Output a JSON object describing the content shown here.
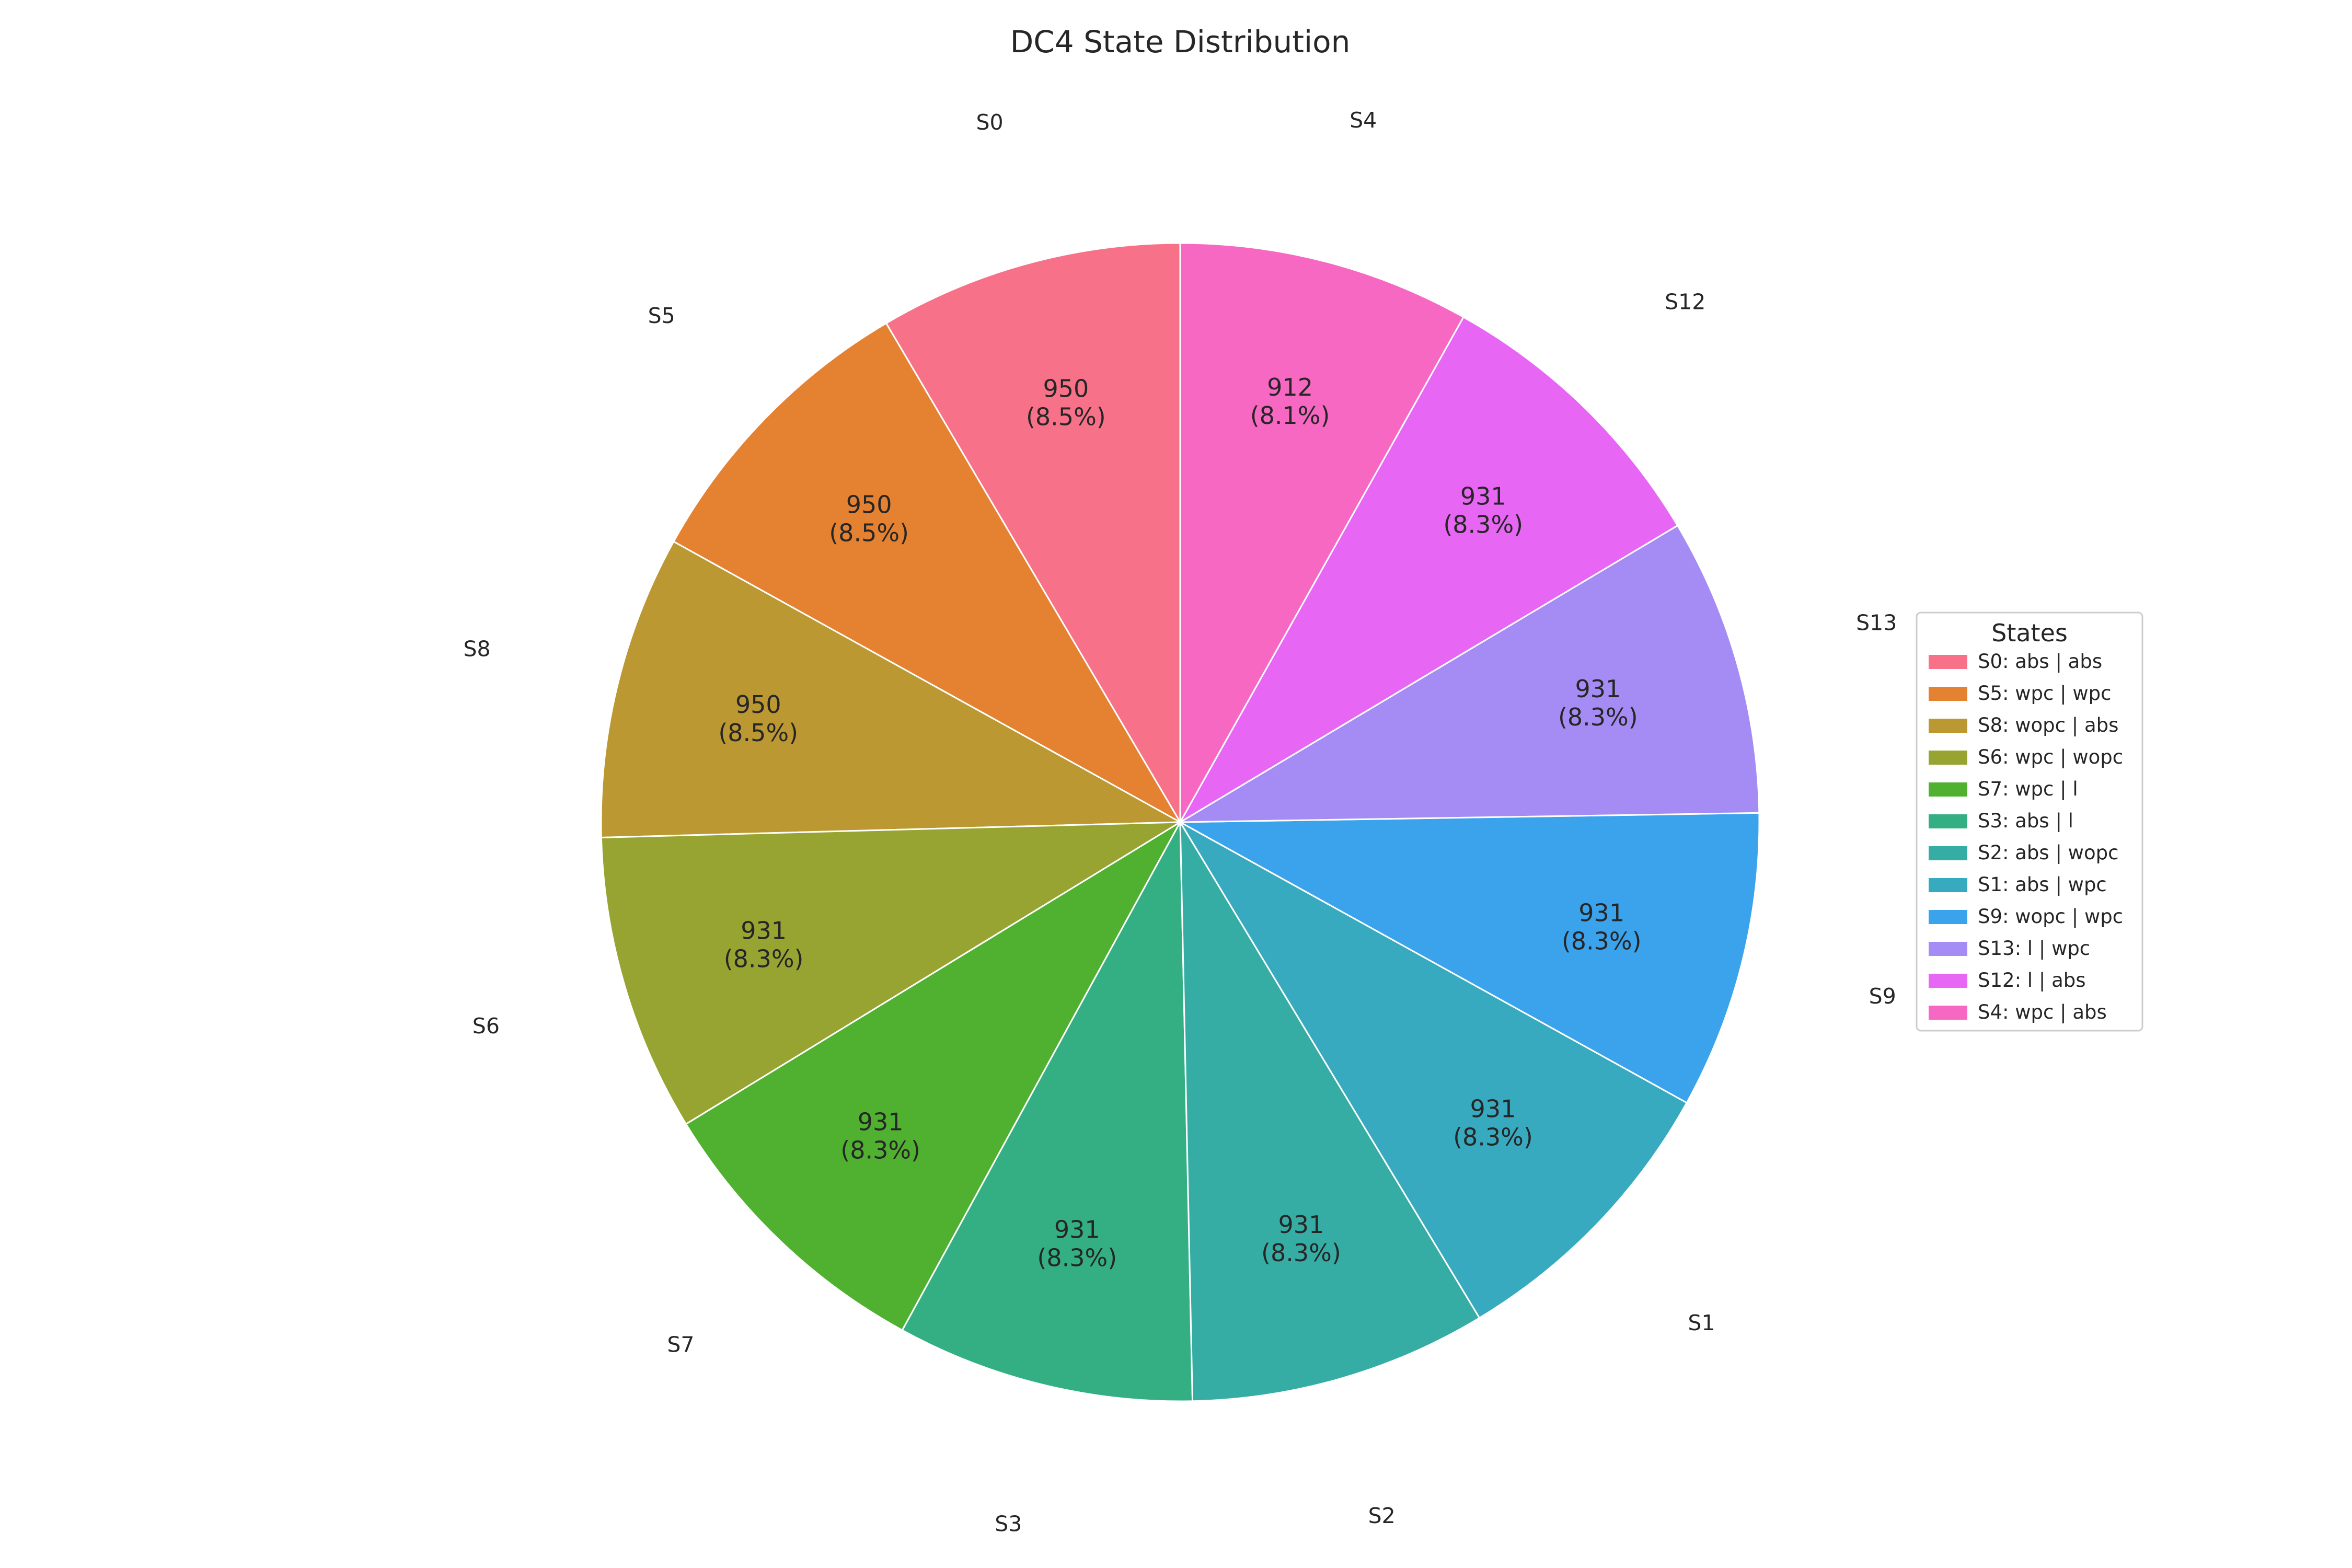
{
  "chart_data": {
    "type": "pie",
    "title": "DC4 State Distribution",
    "start_angle_deg": 90,
    "direction": "counterclockwise",
    "slices": [
      {
        "label": "S0",
        "legend": "S0: abs | abs",
        "value": 950,
        "percent": "8.5%",
        "color": "#f77189"
      },
      {
        "label": "S5",
        "legend": "S5: wpc | wpc",
        "value": 950,
        "percent": "8.5%",
        "color": "#e58232"
      },
      {
        "label": "S8",
        "legend": "S8: wopc | abs",
        "value": 950,
        "percent": "8.5%",
        "color": "#bb9832"
      },
      {
        "label": "S6",
        "legend": "S6: wpc | wopc",
        "value": 931,
        "percent": "8.3%",
        "color": "#97a431"
      },
      {
        "label": "S7",
        "legend": "S7: wpc | l",
        "value": 931,
        "percent": "8.3%",
        "color": "#50b131"
      },
      {
        "label": "S3",
        "legend": "S3: abs | l",
        "value": 931,
        "percent": "8.3%",
        "color": "#34af84"
      },
      {
        "label": "S2",
        "legend": "S2: abs | wopc",
        "value": 931,
        "percent": "8.3%",
        "color": "#36ada4"
      },
      {
        "label": "S1",
        "legend": "S1: abs | wpc",
        "value": 931,
        "percent": "8.3%",
        "color": "#38aabf"
      },
      {
        "label": "S9",
        "legend": "S9: wopc | wpc",
        "value": 931,
        "percent": "8.3%",
        "color": "#3ba3ec"
      },
      {
        "label": "S13",
        "legend": "S13: l | wpc",
        "value": 931,
        "percent": "8.3%",
        "color": "#a48cf4"
      },
      {
        "label": "S12",
        "legend": "S12: l | abs",
        "value": 931,
        "percent": "8.3%",
        "color": "#e866f4"
      },
      {
        "label": "S4",
        "legend": "S4: wpc | abs",
        "value": 912,
        "percent": "8.1%",
        "color": "#f668c2"
      }
    ],
    "legend": {
      "title": "States",
      "placement": "right"
    },
    "slice_edge_color": "#ffffff"
  }
}
